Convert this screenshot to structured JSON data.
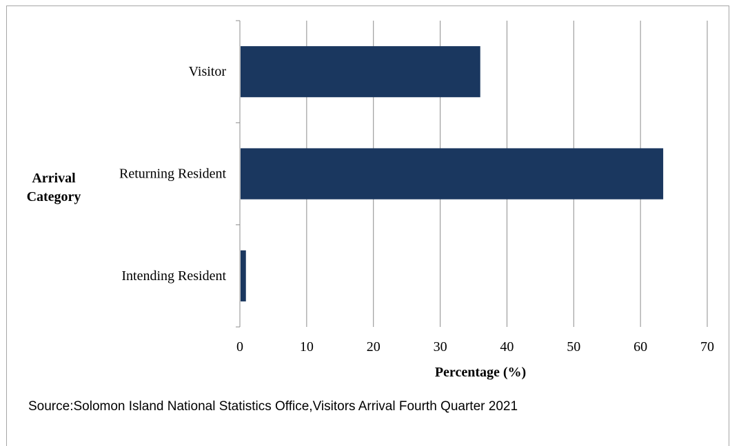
{
  "chart_data": {
    "type": "bar",
    "orientation": "horizontal",
    "categories": [
      "Visitor",
      "Returning Resident",
      "Intending Resident"
    ],
    "values": [
      35.9,
      63.3,
      0.8
    ],
    "ylabel": "Arrival Category",
    "xlabel": "Percentage (%)",
    "xlim": [
      0,
      70
    ],
    "xticks": [
      0,
      10,
      20,
      30,
      40,
      50,
      60,
      70
    ],
    "grid": true,
    "legend": "none",
    "bar_color": "#1a375f"
  },
  "source_note": "Source:Solomon Island National Statistics Office,Visitors Arrival Fourth Quarter 2021"
}
